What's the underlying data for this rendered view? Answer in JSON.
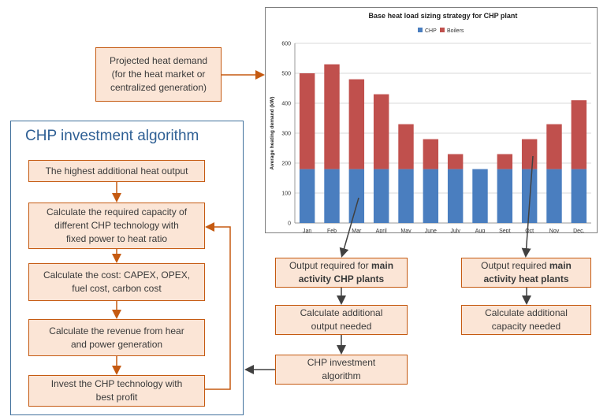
{
  "demand_box": "Projected heat demand\n(for the heat market or\ncentralized generation)",
  "algo": {
    "title": "CHP investment algorithm",
    "steps": [
      "The highest additional heat output",
      "Calculate the required capacity of\ndifferent CHP technology with\nfixed power to heat ratio",
      "Calculate the cost: CAPEX, OPEX,\nfuel cost, carbon cost",
      "Calculate the revenue from hear\nand power generation",
      "Invest the CHP technology with\nbest profit"
    ]
  },
  "chp_flow": {
    "output_prefix": "Output required for ",
    "output_bold": "main\nactivity CHP plants",
    "additional": "Calculate additional\noutput needed",
    "algorithm": "CHP investment\nalgorithm"
  },
  "heat_flow": {
    "output_prefix": "Output required ",
    "output_bold": "main\nactivity heat plants",
    "additional": "Calculate additional\ncapacity needed"
  },
  "colors": {
    "chp": "#4a7ebf",
    "boilers": "#c0504d",
    "box_fill": "#fbe5d6",
    "box_border": "#c55a11"
  },
  "chart_data": {
    "type": "bar",
    "stacked": true,
    "title": "Base heat load sizing strategy for CHP plant",
    "ylabel": "Average heating demand (kW)",
    "xlabel": "",
    "ylim": [
      0,
      600
    ],
    "yticks": [
      0,
      100,
      200,
      300,
      400,
      500,
      600
    ],
    "grid": true,
    "legend_position": "top",
    "categories": [
      "Jan",
      "Feb",
      "Mar",
      "April",
      "May",
      "June",
      "July",
      "Aug",
      "Sept",
      "Oct",
      "Nov",
      "Dec."
    ],
    "series": [
      {
        "name": "CHP",
        "values": [
          180,
          180,
          180,
          180,
          180,
          180,
          180,
          180,
          180,
          180,
          180,
          180
        ]
      },
      {
        "name": "Boilers",
        "values": [
          320,
          350,
          300,
          250,
          150,
          100,
          50,
          0,
          50,
          100,
          150,
          230
        ]
      }
    ]
  }
}
